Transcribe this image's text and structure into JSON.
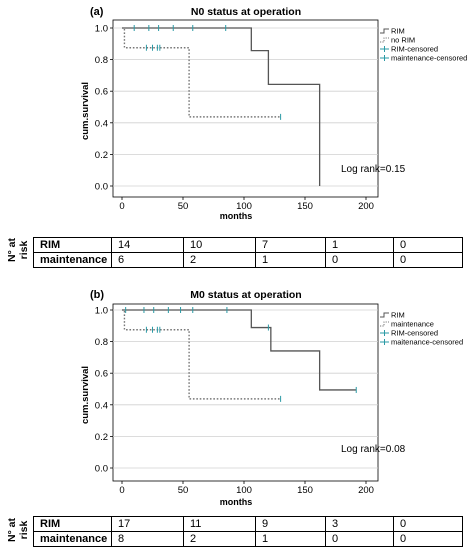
{
  "risk_label": [
    "N° at",
    "risk"
  ],
  "chart_data": [
    {
      "panel": "(a)",
      "type": "line",
      "title": "N0 status at operation",
      "xlabel": "months",
      "ylabel": "cum.survival",
      "xlim": [
        0,
        200
      ],
      "ylim": [
        0,
        1
      ],
      "xticks": [
        "0",
        "50",
        "100",
        "150",
        "200"
      ],
      "yticks": [
        "0.0",
        "0.2",
        "0.4",
        "0.6",
        "0.8",
        "1.0"
      ],
      "grid": "horizontal",
      "legend_position": "right",
      "legend": [
        "RIM",
        "no RIM",
        "RIM-censored",
        "maintenance-censored"
      ],
      "annotation": "Log rank=0.15",
      "series": [
        {
          "name": "RIM",
          "style": "solid",
          "color": "#555555",
          "steps": [
            [
              0,
              1.0
            ],
            [
              106,
              0.857
            ],
            [
              120,
              0.643
            ],
            [
              162,
              0.0
            ]
          ],
          "end": 162,
          "censored_x": [
            10,
            22,
            30,
            42,
            58,
            85
          ]
        },
        {
          "name": "no RIM",
          "style": "dotted",
          "color": "#777777",
          "steps": [
            [
              0,
              1.0
            ],
            [
              2,
              0.875
            ],
            [
              55,
              0.4375
            ]
          ],
          "end": 130,
          "censored_x": [
            20,
            25,
            29,
            31,
            130
          ]
        }
      ],
      "risk_table": {
        "rows": [
          {
            "name": "RIM",
            "counts": [
              "14",
              "10",
              "7",
              "1",
              "0"
            ]
          },
          {
            "name": "maintenance",
            "counts": [
              "6",
              "2",
              "1",
              "0",
              "0"
            ]
          }
        ]
      }
    },
    {
      "panel": "(b)",
      "type": "line",
      "title": "M0 status at operation",
      "xlabel": "months",
      "ylabel": "cum.survival",
      "xlim": [
        0,
        200
      ],
      "ylim": [
        0,
        1
      ],
      "xticks": [
        "0",
        "50",
        "100",
        "150",
        "200"
      ],
      "yticks": [
        "0.0",
        "0.2",
        "0.4",
        "0.6",
        "0.8",
        "1.0"
      ],
      "grid": "horizontal",
      "legend_position": "right",
      "legend": [
        "RIM",
        "maintenance",
        "RIM-censored",
        "maitenance-censored"
      ],
      "annotation": "Log rank=0.08",
      "series": [
        {
          "name": "RIM",
          "style": "solid",
          "color": "#555555",
          "steps": [
            [
              0,
              1.0
            ],
            [
              106,
              0.889
            ],
            [
              122,
              0.741
            ],
            [
              162,
              0.494
            ]
          ],
          "end": 192,
          "censored_x": [
            3,
            18,
            26,
            38,
            48,
            58,
            86,
            120,
            192
          ]
        },
        {
          "name": "maintenance",
          "style": "dotted",
          "color": "#777777",
          "steps": [
            [
              0,
              1.0
            ],
            [
              2,
              0.875
            ],
            [
              55,
              0.4375
            ]
          ],
          "end": 130,
          "censored_x": [
            20,
            25,
            29,
            31,
            130
          ]
        }
      ],
      "risk_table": {
        "rows": [
          {
            "name": "RIM",
            "counts": [
              "17",
              "11",
              "9",
              "3",
              "0"
            ]
          },
          {
            "name": "maintenance",
            "counts": [
              "8",
              "2",
              "1",
              "0",
              "0"
            ]
          }
        ]
      }
    }
  ]
}
